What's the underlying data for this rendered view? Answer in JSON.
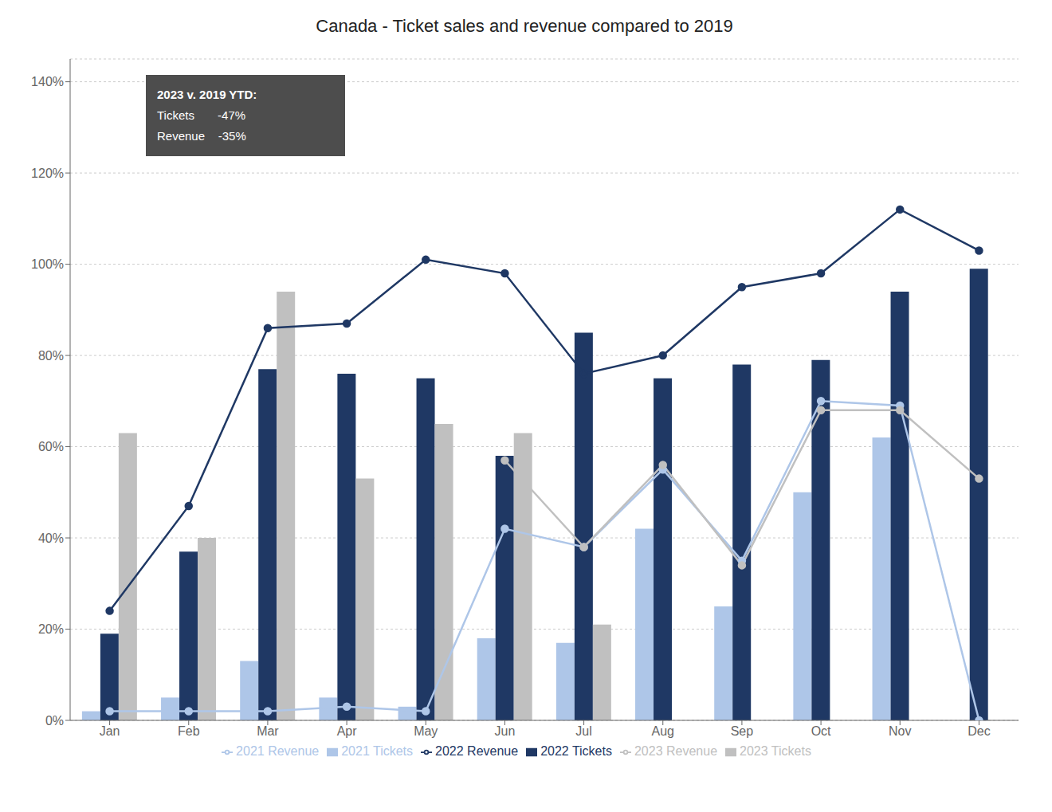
{
  "chart_data": {
    "type": "bar",
    "title": "Canada - Ticket sales and revenue compared to 2019",
    "categories": [
      "Jan",
      "Feb",
      "Mar",
      "Apr",
      "May",
      "Jun",
      "Jul",
      "Aug",
      "Sep",
      "Oct",
      "Nov",
      "Dec"
    ],
    "series": [
      {
        "name": "2021 Tickets",
        "type": "bar",
        "color": "#aec6e8",
        "values": [
          2,
          5,
          13,
          5,
          3,
          18,
          17,
          42,
          25,
          50,
          62,
          0
        ]
      },
      {
        "name": "2022 Tickets",
        "type": "bar",
        "color": "#1f3864",
        "values": [
          19,
          37,
          77,
          76,
          75,
          58,
          85,
          75,
          78,
          79,
          94,
          99
        ]
      },
      {
        "name": "2023 Tickets",
        "type": "bar",
        "color": "#c0c0c0",
        "values": [
          63,
          40,
          94,
          53,
          65,
          63,
          21,
          0,
          0,
          0,
          0,
          0
        ]
      },
      {
        "name": "2022 Revenue",
        "type": "line",
        "marker": "circle",
        "color": "#1f3864",
        "values": [
          24,
          47,
          86,
          87,
          101,
          98,
          76,
          80,
          95,
          98,
          112,
          103
        ]
      },
      {
        "name": "2021 Revenue",
        "type": "line",
        "marker": "circle",
        "color": "#aec6e8",
        "values": [
          2,
          2,
          2,
          3,
          2,
          42,
          38,
          55,
          35,
          70,
          69,
          0
        ]
      },
      {
        "name": "2023 Revenue",
        "type": "line",
        "marker": "circle",
        "color": "#c0c0c0",
        "values": [
          null,
          null,
          null,
          null,
          null,
          57,
          38,
          56,
          34,
          68,
          68,
          53
        ]
      }
    ],
    "ylim": [
      0,
      145
    ],
    "yticks": [
      {
        "value": 0,
        "label": "0%"
      },
      {
        "value": 20,
        "label": "20%"
      },
      {
        "value": 40,
        "label": "40%"
      },
      {
        "value": 60,
        "label": "60%"
      },
      {
        "value": 80,
        "label": "80%"
      },
      {
        "value": 100,
        "label": "100%"
      },
      {
        "value": 120,
        "label": "120%"
      },
      {
        "value": 140,
        "label": "140%"
      }
    ],
    "grid": true,
    "legend": "bottom",
    "annotations": [
      "2023 v. 2019 YTD:",
      "Tickets       -47%",
      "Revenue    -35%"
    ]
  }
}
